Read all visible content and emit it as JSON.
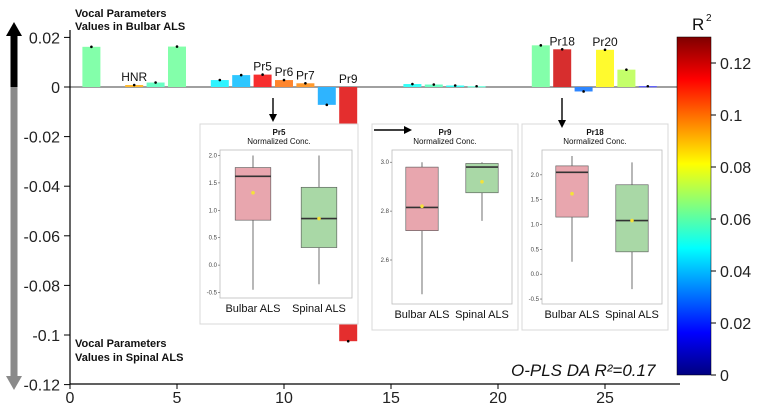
{
  "chart_data": {
    "type": "bar",
    "title": "O-PLS DA R²=0.17",
    "xlabel": "",
    "ylabel": "",
    "ylim": [
      -0.12,
      0.025
    ],
    "xlim": [
      0,
      29
    ],
    "x_ticks": [
      0,
      5,
      10,
      15,
      20,
      25
    ],
    "y_ticks": [
      0.02,
      0,
      -0.02,
      -0.04,
      -0.06,
      -0.08,
      -0.1,
      -0.12
    ],
    "y_tick_labels": [
      "0.02",
      "0",
      "-0.02",
      "-0.04",
      "-0.06",
      "-0.08",
      "-0.1",
      "-0.12"
    ],
    "x_tick_labels": [
      "0",
      "5",
      "10",
      "15",
      "20",
      "25"
    ],
    "bars": [
      {
        "x": 1,
        "value": 0.0162,
        "r2": 0.062
      },
      {
        "x": 3,
        "value": 0.0008,
        "r2": 0.092
      },
      {
        "x": 4,
        "value": 0.0018,
        "r2": 0.058
      },
      {
        "x": 5,
        "value": 0.0163,
        "r2": 0.062
      },
      {
        "x": 7,
        "value": 0.0028,
        "r2": 0.047
      },
      {
        "x": 8,
        "value": 0.0048,
        "r2": 0.04
      },
      {
        "x": 9,
        "value": 0.005,
        "r2": 0.115
      },
      {
        "x": 10,
        "value": 0.0028,
        "r2": 0.1
      },
      {
        "x": 11,
        "value": 0.0015,
        "r2": 0.097
      },
      {
        "x": 12,
        "value": -0.0072,
        "r2": 0.037
      },
      {
        "x": 13,
        "value": -0.1025,
        "r2": 0.118
      },
      {
        "x": 16,
        "value": 0.0012,
        "r2": 0.05
      },
      {
        "x": 17,
        "value": 0.001,
        "r2": 0.058
      },
      {
        "x": 18,
        "value": 0.0006,
        "r2": 0.05
      },
      {
        "x": 19,
        "value": 0.0003,
        "r2": 0.055
      },
      {
        "x": 22,
        "value": 0.0168,
        "r2": 0.062
      },
      {
        "x": 23,
        "value": 0.0152,
        "r2": 0.12
      },
      {
        "x": 24,
        "value": -0.0018,
        "r2": 0.03
      },
      {
        "x": 25,
        "value": 0.015,
        "r2": 0.082
      },
      {
        "x": 26,
        "value": 0.007,
        "r2": 0.072
      },
      {
        "x": 27,
        "value": 0.0003,
        "r2": 0.015
      }
    ],
    "bar_labels": [
      {
        "x": 3,
        "text": "HNR"
      },
      {
        "x": 9,
        "text": "Pr5"
      },
      {
        "x": 10,
        "text": "Pr6"
      },
      {
        "x": 11,
        "text": "Pr7"
      },
      {
        "x": 13,
        "text": "Pr9"
      },
      {
        "x": 23,
        "text": "Pr18"
      },
      {
        "x": 25,
        "text": "Pr20"
      }
    ],
    "annotations": {
      "top_label_line1": "Vocal Parameters",
      "top_label_line2": "Values in Bulbar ALS",
      "bottom_label_line1": "Vocal Parameters",
      "bottom_label_line2": "Values in Spinal ALS",
      "model_label": "O-PLS DA R²=0.17"
    },
    "colorbar": {
      "title": "R",
      "title_superscript": "2",
      "min": 0,
      "max": 0.13,
      "ticks": [
        0,
        0.02,
        0.04,
        0.06,
        0.08,
        0.1,
        0.12
      ],
      "tick_labels": [
        "0",
        "0.02",
        "0.04",
        "0.06",
        "0.08",
        "0.1",
        "0.12"
      ],
      "colors": [
        "#00007f",
        "#0000ff",
        "#0080ff",
        "#00ffff",
        "#80ff80",
        "#ffff00",
        "#ff8000",
        "#ff0000",
        "#7f0000"
      ]
    },
    "insets": [
      {
        "title": "Pr5",
        "subtitle": "Normalized Conc.",
        "arrow_from_bar": 9,
        "y_range": [
          -0.6,
          2.1
        ],
        "y_ticks": [
          -0.5,
          0.0,
          0.5,
          1.0,
          1.5,
          2.0
        ],
        "y_tick_labels": [
          "-0.5",
          "0.0",
          "0.5",
          "1.0",
          "1.5",
          "2.0"
        ],
        "groups": [
          {
            "label": "Bulbar ALS",
            "color": "#e8a6ae",
            "min": -0.45,
            "q1": 0.82,
            "median": 1.62,
            "q3": 1.78,
            "max": 2.0,
            "mean": 1.32
          },
          {
            "label": "Spinal ALS",
            "color": "#a9d8a6",
            "min": -0.35,
            "q1": 0.32,
            "median": 0.85,
            "q3": 1.42,
            "max": 2.0,
            "mean": 0.85
          }
        ]
      },
      {
        "title": "Pr9",
        "subtitle": "Normalized Conc.",
        "arrow_from_bar": 13,
        "y_range": [
          2.42,
          3.05
        ],
        "y_ticks": [
          2.6,
          2.8,
          3.0
        ],
        "y_tick_labels": [
          "2.6",
          "2.8",
          "3.0"
        ],
        "groups": [
          {
            "label": "Bulbar ALS",
            "color": "#e8a6ae",
            "min": 2.46,
            "q1": 2.72,
            "median": 2.815,
            "q3": 2.98,
            "max": 3.0,
            "mean": 2.82
          },
          {
            "label": "Spinal ALS",
            "color": "#a9d8a6",
            "min": 2.76,
            "q1": 2.875,
            "median": 2.98,
            "q3": 2.995,
            "max": 3.0,
            "mean": 2.92
          }
        ]
      },
      {
        "title": "Pr18",
        "subtitle": "Normalized Conc.",
        "arrow_from_bar": 23,
        "y_range": [
          -0.6,
          2.5
        ],
        "y_ticks": [
          -0.5,
          0.0,
          0.5,
          1.0,
          1.5,
          2.0
        ],
        "y_tick_labels": [
          "-0.5",
          "0.0",
          "0.5",
          "1.0",
          "1.5",
          "2.0"
        ],
        "groups": [
          {
            "label": "Bulbar ALS",
            "color": "#e8a6ae",
            "min": 0.25,
            "q1": 1.15,
            "median": 2.05,
            "q3": 2.18,
            "max": 2.38,
            "mean": 1.62
          },
          {
            "label": "Spinal ALS",
            "color": "#a9d8a6",
            "min": -0.3,
            "q1": 0.45,
            "median": 1.08,
            "q3": 1.8,
            "max": 2.25,
            "mean": 1.08
          }
        ]
      }
    ]
  }
}
